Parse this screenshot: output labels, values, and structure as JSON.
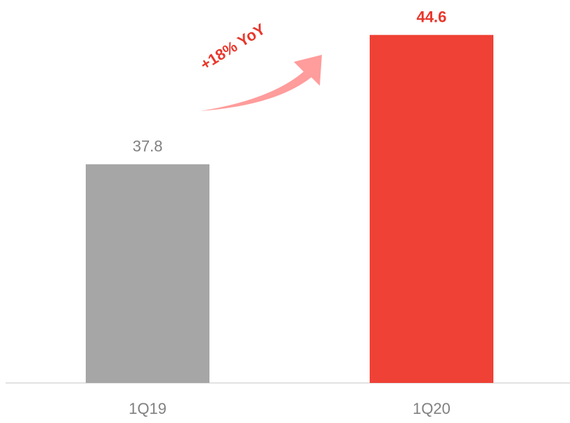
{
  "chart_data": {
    "type": "bar",
    "categories": [
      "1Q19",
      "1Q20"
    ],
    "values": [
      37.8,
      44.6
    ],
    "colors": [
      "#a6a6a6",
      "#ef4136"
    ],
    "label_colors": [
      "#808080",
      "#e8372c"
    ],
    "ylim": [
      26.3,
      46.4
    ],
    "annotation": "+18% YoY"
  }
}
